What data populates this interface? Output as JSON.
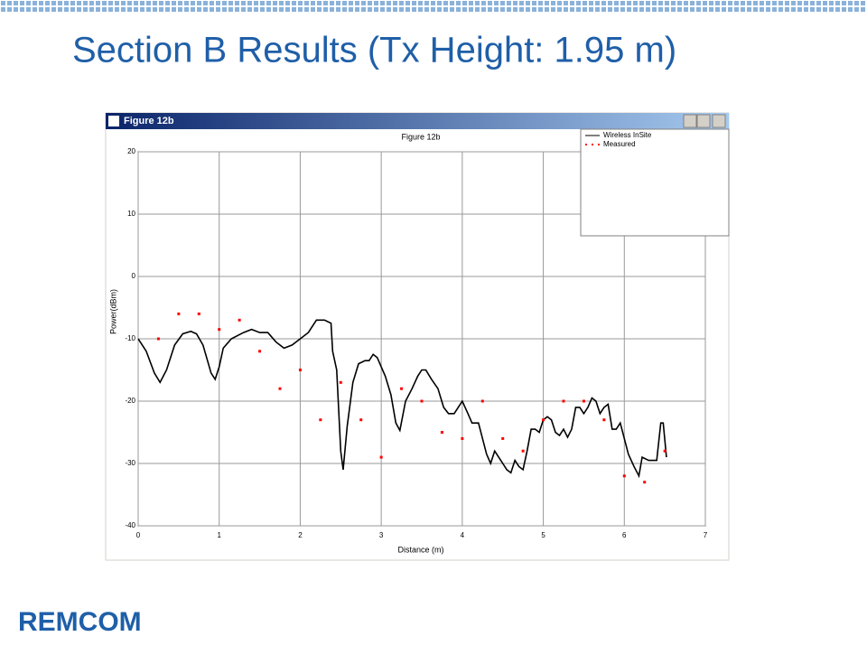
{
  "slide_title": "Section B Results (Tx Height: 1.95 m)",
  "window_title": "Figure 12b",
  "logo": "REMCOM",
  "chart_data": {
    "type": "line",
    "title": "Figure 12b",
    "x_label": "Distance (m)",
    "y_label": "Power(dBm)",
    "xlim": [
      0,
      7
    ],
    "xticks": [
      0,
      1,
      2,
      3,
      4,
      5,
      6,
      7
    ],
    "ylim": [
      -40,
      20
    ],
    "yticks": [
      -40,
      -30,
      -20,
      -10,
      0,
      10,
      20
    ],
    "grid": true,
    "series": [
      {
        "name": "Wireless InSite",
        "color": "#000000",
        "style": "line",
        "x": [
          0,
          0.1,
          0.2,
          0.27,
          0.35,
          0.45,
          0.55,
          0.65,
          0.72,
          0.8,
          0.9,
          0.95,
          1.0,
          1.05,
          1.15,
          1.3,
          1.4,
          1.5,
          1.6,
          1.7,
          1.8,
          1.9,
          2.0,
          2.1,
          2.2,
          2.3,
          2.38,
          2.4,
          2.45,
          2.5,
          2.53,
          2.58,
          2.65,
          2.72,
          2.8,
          2.85,
          2.9,
          2.95,
          3.05,
          3.12,
          3.18,
          3.23,
          3.3,
          3.38,
          3.45,
          3.5,
          3.55,
          3.62,
          3.7,
          3.77,
          3.83,
          3.9,
          3.95,
          4.0,
          4.07,
          4.12,
          4.2,
          4.25,
          4.3,
          4.35,
          4.4,
          4.5,
          4.55,
          4.6,
          4.65,
          4.7,
          4.75,
          4.8,
          4.85,
          4.9,
          4.95,
          5.0,
          5.05,
          5.1,
          5.15,
          5.2,
          5.25,
          5.3,
          5.35,
          5.4,
          5.45,
          5.5,
          5.55,
          5.6,
          5.65,
          5.7,
          5.75,
          5.8,
          5.85,
          5.9,
          5.95,
          6.05,
          6.12,
          6.18,
          6.22,
          6.3,
          6.4,
          6.45,
          6.48,
          6.52
        ],
        "values": [
          -10,
          -12,
          -15.5,
          -17,
          -15,
          -11,
          -9.2,
          -8.8,
          -9.2,
          -11,
          -15.5,
          -16.5,
          -14.5,
          -11.5,
          -10,
          -9,
          -8.5,
          -9,
          -9,
          -10.5,
          -11.5,
          -11,
          -10,
          -9,
          -7,
          -7,
          -7.5,
          -12,
          -15,
          -28,
          -31,
          -24,
          -17,
          -14,
          -13.5,
          -13.5,
          -12.5,
          -13,
          -16,
          -19,
          -23.5,
          -24.7,
          -20,
          -18,
          -16,
          -15,
          -15,
          -16.5,
          -18,
          -21,
          -22,
          -22,
          -21,
          -20,
          -22,
          -23.5,
          -23.5,
          -26,
          -28.5,
          -30,
          -28,
          -30,
          -31,
          -31.5,
          -29.5,
          -30.5,
          -31,
          -28,
          -24.5,
          -24.5,
          -25,
          -23,
          -22.5,
          -23,
          -25,
          -25.5,
          -24.5,
          -25.8,
          -24.5,
          -21,
          -21,
          -22,
          -21,
          -19.5,
          -20,
          -22,
          -21,
          -20.5,
          -24.5,
          -24.5,
          -23.5,
          -28.5,
          -30.5,
          -32,
          -29,
          -29.5,
          -29.5,
          -23.5,
          -23.5,
          -29
        ]
      },
      {
        "name": "Measured",
        "color": "#ff0000",
        "style": "points",
        "x": [
          0.25,
          0.5,
          0.75,
          1.0,
          1.25,
          1.5,
          1.75,
          2.0,
          2.25,
          2.5,
          2.75,
          3.0,
          3.25,
          3.5,
          3.75,
          4.0,
          4.25,
          4.5,
          4.75,
          5.0,
          5.25,
          5.5,
          5.75,
          6.0,
          6.25,
          6.5
        ],
        "values": [
          -10,
          -6,
          -6,
          -8.5,
          -7,
          -12,
          -18,
          -15,
          -23,
          -17,
          -23,
          -29,
          -18,
          -20,
          -25,
          -26,
          -20,
          -26,
          -28,
          -23,
          -20,
          -20,
          -23,
          -32,
          -33,
          -28
        ]
      }
    ]
  }
}
